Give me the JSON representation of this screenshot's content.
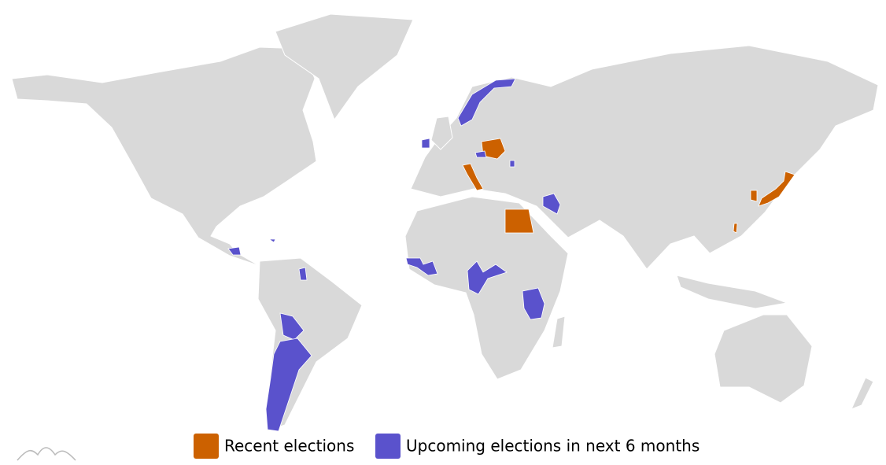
{
  "legend": [
    {
      "label": "Recent elections",
      "color": "#cc6100"
    },
    {
      "label": "Upcoming elections in next 6 months",
      "color": "#5a52cc"
    }
  ]
}
